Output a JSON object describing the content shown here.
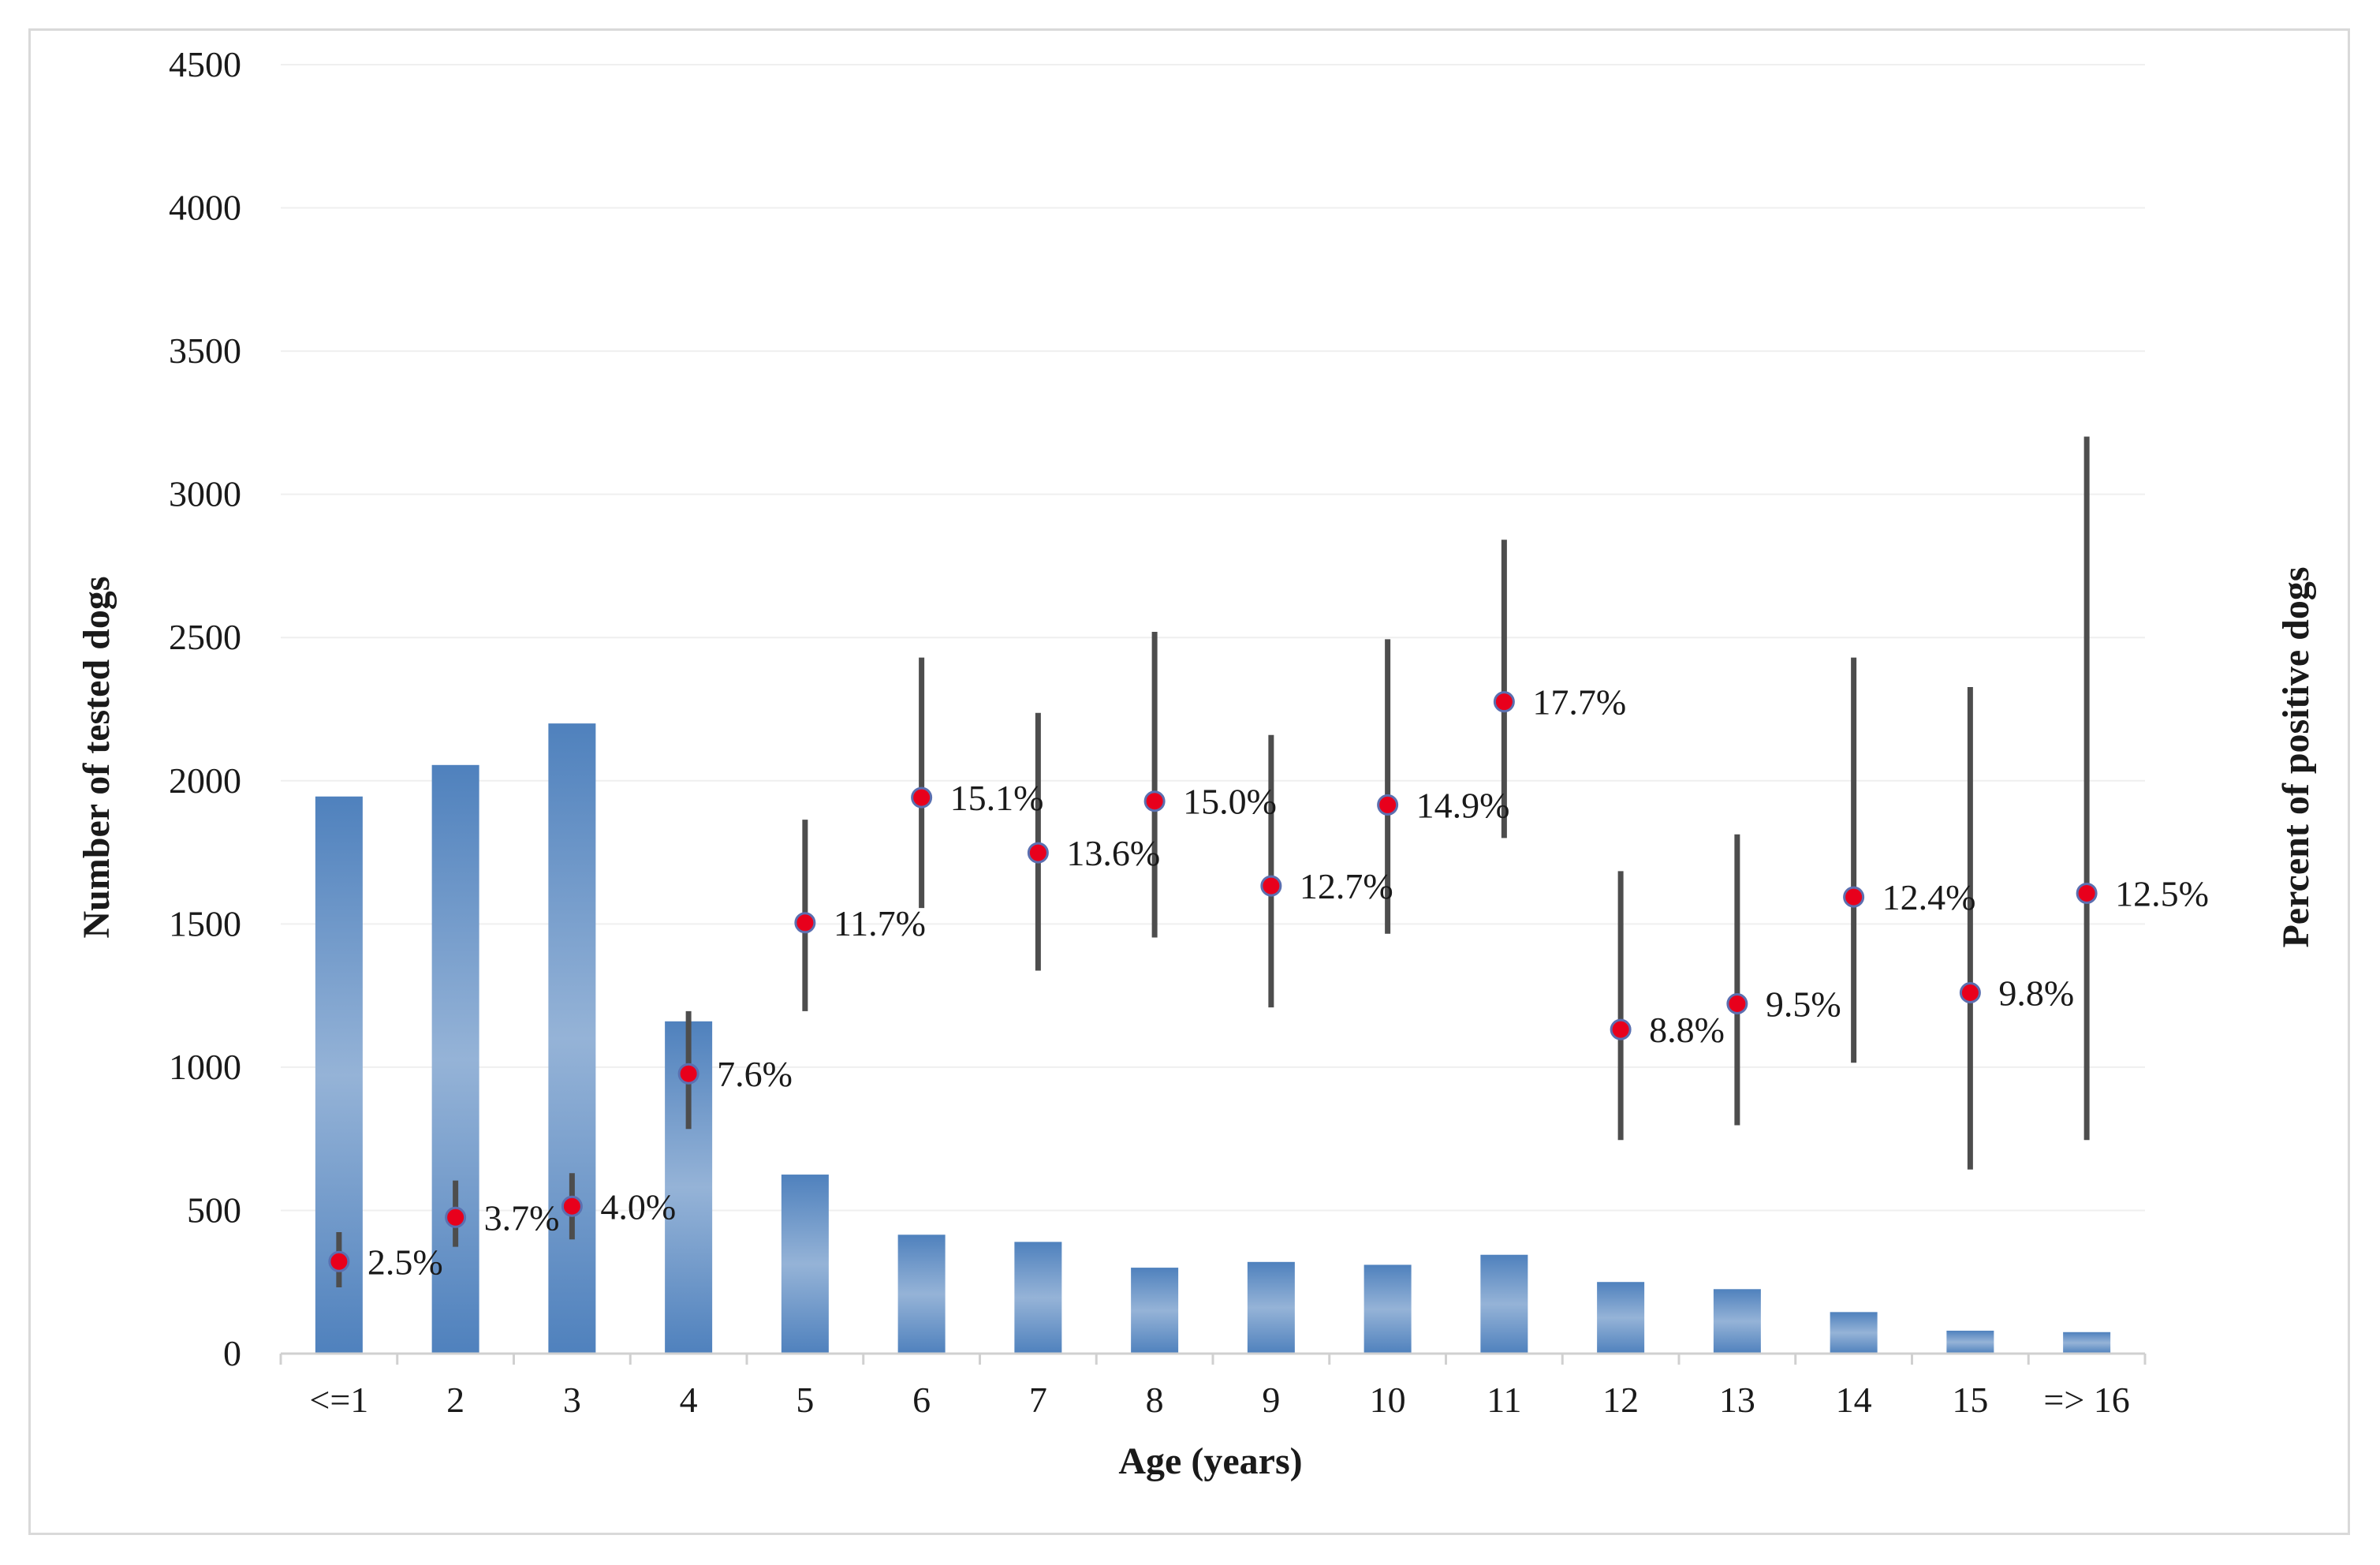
{
  "chart_data": {
    "type": "bar+scatter",
    "title": "",
    "xlabel": "Age (years)",
    "ylabel": "Number of tested dogs",
    "y2label": "Percent of positive dogs",
    "ylim": [
      0,
      4500
    ],
    "yticks": [
      0,
      500,
      1000,
      1500,
      2000,
      2500,
      3000,
      3500,
      4000,
      4500
    ],
    "categories": [
      "<=1",
      "2",
      "3",
      "4",
      "5",
      "6",
      "7",
      "8",
      "9",
      "10",
      "11",
      "12",
      "13",
      "14",
      "15",
      "=> 16"
    ],
    "series": [
      {
        "name": "Number of tested dogs",
        "type": "bar",
        "axis": "left",
        "values": [
          1945,
          2055,
          2200,
          1160,
          625,
          415,
          390,
          300,
          320,
          310,
          345,
          250,
          225,
          145,
          80,
          75
        ]
      },
      {
        "name": "Percent of positive dogs",
        "type": "scatter",
        "axis": "right",
        "values": [
          2.5,
          3.7,
          4.0,
          7.6,
          11.7,
          15.1,
          13.6,
          15.0,
          12.7,
          14.9,
          17.7,
          8.8,
          9.5,
          12.4,
          9.8,
          12.5
        ],
        "labels": [
          "2.5%",
          "3.7%",
          "4.0%",
          "7.6%",
          "11.7%",
          "15.1%",
          "13.6%",
          "15.0%",
          "12.7%",
          "14.9%",
          "17.7%",
          "8.8%",
          "9.5%",
          "12.4%",
          "9.8%",
          "12.5%"
        ],
        "ci_low": [
          1.8,
          2.9,
          3.1,
          6.1,
          9.3,
          12.1,
          10.4,
          11.3,
          9.4,
          11.4,
          14.0,
          5.8,
          6.2,
          7.9,
          5.0,
          5.8
        ],
        "ci_high": [
          3.3,
          4.7,
          4.9,
          9.3,
          14.5,
          18.9,
          17.4,
          19.6,
          16.8,
          19.4,
          22.1,
          13.1,
          14.1,
          18.9,
          18.1,
          24.9
        ]
      }
    ],
    "y2_hidden_scale": {
      "percent_per_left_unit": 0.007778
    },
    "colors": {
      "bar_dark": "#4f81bd",
      "bar_light": "#95b3d7",
      "marker": "#e8001c",
      "marker_edge": "#5b6fb0",
      "errorbar": "#4d4d4d",
      "grid": "#efefef"
    }
  }
}
